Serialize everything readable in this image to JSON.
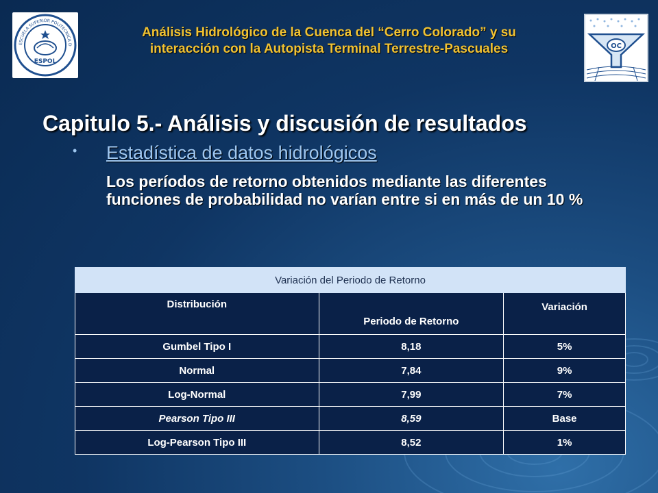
{
  "header": {
    "line1": "Análisis Hidrológico de la Cuenca del “Cerro Colorado” y su",
    "line2": "interacción con la Autopista Terminal Terrestre-Pascuales"
  },
  "logos": {
    "left_text_top": "ESCUELA SUPERIOR POLITECNICA DEL LITORAL",
    "left_text_bottom": "ESPOL",
    "right_text": "OC"
  },
  "chapter_title": "Capitulo 5.-  Análisis y discusión de resultados",
  "bullet_glyph": "•",
  "subtitle": "Estadística de datos hidrológicos",
  "paragraph": "Los períodos de retorno obtenidos mediante las diferentes funciones de probabilidad no varían entre si en más de un 10 %",
  "table": {
    "caption": "Variación del Periodo de Retorno",
    "headers": [
      "Distribución",
      "Periodo de Retorno",
      "Variación"
    ],
    "rows": [
      [
        "Gumbel Tipo I",
        "8,18",
        "5%"
      ],
      [
        "Normal",
        "7,84",
        "9%"
      ],
      [
        "Log-Normal",
        "7,99",
        "7%"
      ],
      [
        "Pearson Tipo III",
        "8,59",
        "Base"
      ],
      [
        "Log-Pearson Tipo III",
        "8,52",
        "1%"
      ]
    ]
  },
  "colors": {
    "header_text": "#f1c232",
    "background": "#0f3563",
    "table_caption_bg": "#d2e3f7",
    "table_cell_bg": "#0a2148",
    "link": "#9fc7f0"
  }
}
